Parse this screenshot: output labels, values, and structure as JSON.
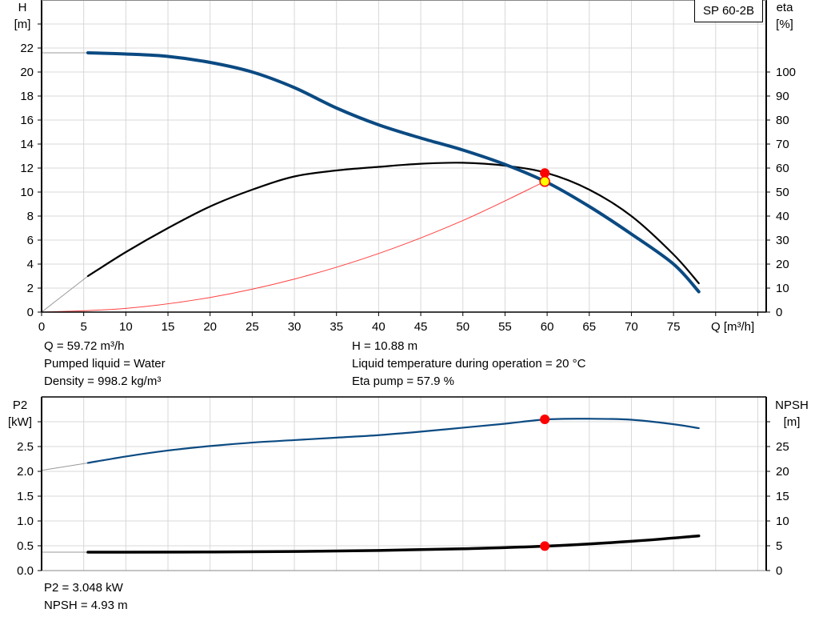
{
  "product_label": "SP 60-2B",
  "colors": {
    "head": "#0b4a82",
    "eta": "#000000",
    "system": "#ff4040",
    "p2": "#0b4a82",
    "npsh": "#000000",
    "grid": "#d8d8d8",
    "duty_point": "#ff0000",
    "duty_point_head": "#ffff00"
  },
  "top_info": {
    "q": "Q = 59.72 m³/h",
    "liquid": "Pumped liquid = Water",
    "density": "Density = 998.2 kg/m³",
    "h": "H = 10.88 m",
    "temperature": "Liquid temperature during operation = 20 °C",
    "eta": "Eta pump = 57.9 %"
  },
  "bottom_info": {
    "p2": "P2 = 3.048 kW",
    "npsh": "NPSH = 4.93 m"
  },
  "chart_data": [
    {
      "type": "line",
      "xlabel": "Q [m³/h]",
      "ylabel_left": [
        "H",
        "[m]"
      ],
      "ylabel_right": [
        "eta",
        "[%]"
      ],
      "xlim": [
        0,
        86
      ],
      "ylim_left": [
        0,
        26
      ],
      "ylim_right": [
        0,
        130
      ],
      "x_ticks": [
        0,
        5,
        10,
        15,
        20,
        25,
        30,
        35,
        40,
        45,
        50,
        55,
        60,
        65,
        70,
        75
      ],
      "y_ticks_left": [
        0,
        2,
        4,
        6,
        8,
        10,
        12,
        14,
        16,
        18,
        20,
        22
      ],
      "y_ticks_right": [
        0,
        10,
        20,
        30,
        40,
        50,
        60,
        70,
        80,
        90,
        100
      ],
      "grid": true,
      "series": [
        {
          "id": "head",
          "axis": "left",
          "x": [
            5.5,
            10,
            15,
            20,
            25,
            30,
            35,
            40,
            45,
            50,
            55,
            60,
            65,
            70,
            75,
            78
          ],
          "y": [
            21.6,
            21.5,
            21.3,
            20.8,
            20.0,
            18.7,
            17.0,
            15.6,
            14.5,
            13.5,
            12.3,
            10.8,
            8.8,
            6.5,
            4.0,
            1.7
          ],
          "extrapolated": {
            "x": [
              0,
              5.5
            ],
            "y": [
              21.6,
              21.6
            ]
          }
        },
        {
          "id": "eta",
          "axis": "right",
          "x": [
            5.5,
            10,
            15,
            20,
            25,
            30,
            35,
            40,
            45,
            50,
            55,
            60,
            65,
            70,
            75,
            78
          ],
          "y": [
            15,
            25,
            35,
            44,
            51,
            56.5,
            59,
            60.5,
            61.8,
            62.2,
            61,
            57.9,
            51,
            40,
            24,
            12
          ],
          "extrapolated": {
            "x": [
              0,
              5.5
            ],
            "y": [
              0,
              15
            ]
          }
        },
        {
          "id": "system",
          "axis": "left",
          "x": [
            0,
            10,
            20,
            30,
            40,
            50,
            59.72
          ],
          "y": [
            0,
            0.31,
            1.22,
            2.75,
            4.88,
            7.63,
            10.88
          ]
        }
      ],
      "duty_point": {
        "q": 59.72,
        "h": 10.88,
        "eta": 57.9
      }
    },
    {
      "type": "line",
      "ylabel_left": [
        "P2",
        "[kW]"
      ],
      "ylabel_right": [
        "NPSH",
        "[m]"
      ],
      "xlim": [
        0,
        86
      ],
      "ylim_left": [
        0,
        3.5
      ],
      "ylim_right": [
        0,
        35
      ],
      "y_ticks_left": [
        "0.0",
        "0.5",
        "1.0",
        "1.5",
        "2.0",
        "2.5"
      ],
      "y_ticks_right": [
        "0",
        "5",
        "10",
        "15",
        "20",
        "25"
      ],
      "grid": true,
      "series": [
        {
          "id": "p2",
          "axis": "left",
          "x": [
            5.5,
            10,
            15,
            20,
            25,
            30,
            35,
            40,
            45,
            50,
            55,
            60,
            65,
            70,
            75,
            78
          ],
          "y": [
            2.17,
            2.3,
            2.42,
            2.51,
            2.58,
            2.63,
            2.68,
            2.73,
            2.8,
            2.88,
            2.96,
            3.048,
            3.06,
            3.04,
            2.95,
            2.87
          ],
          "extrapolated": {
            "x": [
              0,
              5.5
            ],
            "y": [
              2.02,
              2.17
            ]
          }
        },
        {
          "id": "npsh",
          "axis": "right",
          "x": [
            5.5,
            10,
            20,
            30,
            40,
            50,
            60,
            70,
            78
          ],
          "y": [
            3.7,
            3.7,
            3.75,
            3.85,
            4.05,
            4.4,
            4.93,
            5.9,
            7.0
          ],
          "extrapolated": {
            "x": [
              0,
              5.5
            ],
            "y": [
              3.7,
              3.7
            ]
          }
        }
      ],
      "duty_point": {
        "q": 59.72,
        "p2": 3.048,
        "npsh": 4.93
      }
    }
  ]
}
